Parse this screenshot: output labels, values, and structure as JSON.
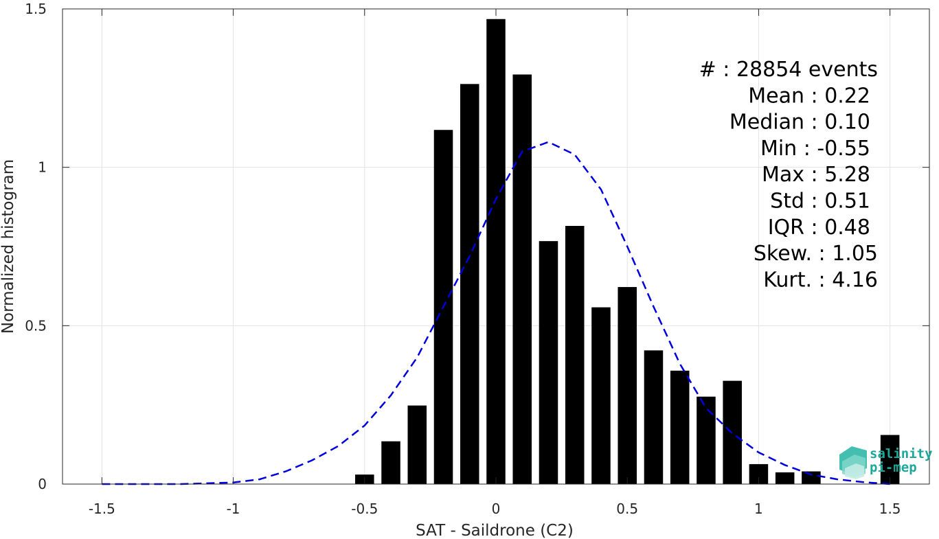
{
  "chart_data": {
    "type": "bar",
    "xlabel": "SAT - Saildrone (C2)",
    "ylabel": "Normalized histogram",
    "xlim": [
      -1.65,
      1.65
    ],
    "ylim": [
      0,
      1.5
    ],
    "xticks": [
      -1.5,
      -1,
      -0.5,
      0,
      0.5,
      1,
      1.5
    ],
    "xtick_labels": [
      "-1.5",
      "-1",
      "-0.5",
      "0",
      "0.5",
      "1",
      "1.5"
    ],
    "yticks": [
      0,
      0.5,
      1,
      1.5
    ],
    "ytick_labels": [
      "0",
      "0.5",
      "1",
      "1.5"
    ],
    "grid": true,
    "bar_color": "#000000",
    "fit_color": "#0000dd",
    "bars": [
      {
        "x": -0.5,
        "y": 0.03
      },
      {
        "x": -0.4,
        "y": 0.135
      },
      {
        "x": -0.3,
        "y": 0.248
      },
      {
        "x": -0.2,
        "y": 1.118
      },
      {
        "x": -0.1,
        "y": 1.263
      },
      {
        "x": 0.0,
        "y": 1.468
      },
      {
        "x": 0.1,
        "y": 1.293
      },
      {
        "x": 0.2,
        "y": 0.767
      },
      {
        "x": 0.3,
        "y": 0.815
      },
      {
        "x": 0.4,
        "y": 0.558
      },
      {
        "x": 0.5,
        "y": 0.622
      },
      {
        "x": 0.6,
        "y": 0.422
      },
      {
        "x": 0.7,
        "y": 0.358
      },
      {
        "x": 0.8,
        "y": 0.276
      },
      {
        "x": 0.9,
        "y": 0.326
      },
      {
        "x": 1.0,
        "y": 0.063
      },
      {
        "x": 1.1,
        "y": 0.037
      },
      {
        "x": 1.2,
        "y": 0.04
      },
      {
        "x": 1.5,
        "y": 0.155
      }
    ],
    "fit_curve": {
      "x": [
        -1.5,
        -1.2,
        -1.0,
        -0.9,
        -0.8,
        -0.7,
        -0.6,
        -0.5,
        -0.4,
        -0.3,
        -0.2,
        -0.1,
        0.0,
        0.1,
        0.2,
        0.3,
        0.4,
        0.5,
        0.6,
        0.7,
        0.8,
        0.9,
        1.0,
        1.1,
        1.2,
        1.3,
        1.4,
        1.5
      ],
      "y": [
        0.0,
        0.0,
        0.005,
        0.015,
        0.04,
        0.075,
        0.12,
        0.185,
        0.28,
        0.4,
        0.56,
        0.72,
        0.9,
        1.05,
        1.08,
        1.04,
        0.93,
        0.75,
        0.56,
        0.38,
        0.24,
        0.16,
        0.1,
        0.06,
        0.03,
        0.015,
        0.006,
        0.0
      ]
    },
    "stats": [
      {
        "label": "#  : 28854 events"
      },
      {
        "label": "Mean : 0.22"
      },
      {
        "label": "Median : 0.10"
      },
      {
        "label": "Min : -0.55"
      },
      {
        "label": "Max : 5.28"
      },
      {
        "label": "Std : 0.51"
      },
      {
        "label": "IQR : 0.48"
      },
      {
        "label": "Skew. : 1.05"
      },
      {
        "label": "Kurt. : 4.16"
      }
    ]
  },
  "logo": {
    "line1": "salinity",
    "line2": "pi-mep",
    "color": "#1aa89a"
  }
}
